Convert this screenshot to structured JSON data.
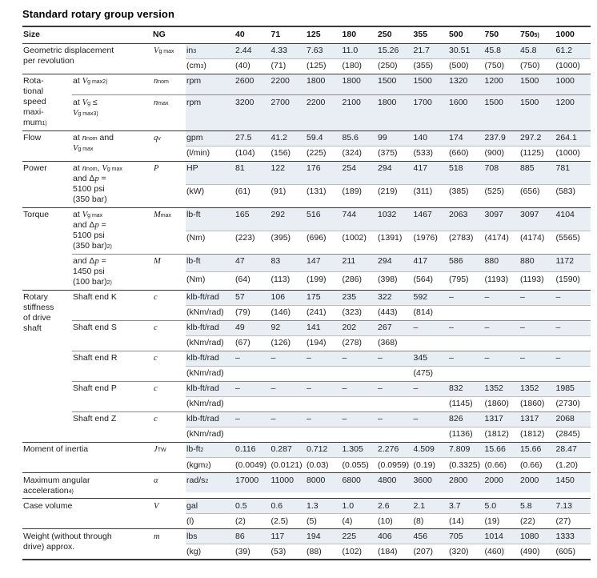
{
  "title": "Standard rotary group version",
  "colors": {
    "shade": "#e8eef3",
    "heavy_line": "#3a3a3a",
    "mid_line": "#8a8a8a",
    "light_line": "#bdbdbd"
  },
  "table": {
    "size_header": "Size",
    "ng_header": "NG",
    "sizes": [
      "40",
      "71",
      "125",
      "180",
      "250",
      "355",
      "500",
      "750",
      "750^{5)}",
      "1000"
    ],
    "sections": [
      {
        "label": "Geometric displacement\nper revolution",
        "span2": true,
        "rows": [
          {
            "symbol": "~V~_{g max}",
            "lines": [
              {
                "unit": "in^{3}",
                "shaded": true,
                "values": [
                  "2.44",
                  "4.33",
                  "7.63",
                  "11.0",
                  "15.26",
                  "21.7",
                  "30.51",
                  "45.8",
                  "45.8",
                  "61.2"
                ]
              },
              {
                "unit": "(cm^{3})",
                "shaded": false,
                "values": [
                  "(40)",
                  "(71)",
                  "(125)",
                  "(180)",
                  "(250)",
                  "(355)",
                  "(500)",
                  "(750)",
                  "(750)",
                  "(1000)"
                ]
              }
            ]
          }
        ]
      },
      {
        "label": "Rota-\ntional\nspeed\nmaxi-\nmum^{1)}",
        "span2": false,
        "rows": [
          {
            "sublabel": "at ~V~_{g max}^{2)}",
            "symbol": "~n~_{nom}",
            "lines": [
              {
                "unit": "rpm",
                "shaded": true,
                "values": [
                  "2600",
                  "2200",
                  "1800",
                  "1800",
                  "1500",
                  "1500",
                  "1320",
                  "1200",
                  "1500",
                  "1000"
                ]
              }
            ]
          },
          {
            "sublabel": "at ~V~_{g} ≤\n~V~_{g max}^{3)}",
            "symbol": "~n~_{max}",
            "lines": [
              {
                "unit": "rpm",
                "shaded": true,
                "values": [
                  "3200",
                  "2700",
                  "2200",
                  "2100",
                  "1800",
                  "1700",
                  "1600",
                  "1500",
                  "1500",
                  "1200"
                ]
              }
            ]
          }
        ]
      },
      {
        "label": "Flow",
        "span2": false,
        "rows": [
          {
            "sublabel": "at ~n~_{nom} and\n~V~_{g max}",
            "symbol": "~q~_{v}",
            "lines": [
              {
                "unit": "gpm",
                "shaded": true,
                "values": [
                  "27.5",
                  "41.2",
                  "59.4",
                  "85.6",
                  "99",
                  "140",
                  "174",
                  "237.9",
                  "297.2",
                  "264.1"
                ]
              },
              {
                "unit": "(l/min)",
                "shaded": false,
                "values": [
                  "(104)",
                  "(156)",
                  "(225)",
                  "(324)",
                  "(375)",
                  "(533)",
                  "(660)",
                  "(900)",
                  "(1125)",
                  "(1000)"
                ]
              }
            ]
          }
        ]
      },
      {
        "label": "Power",
        "span2": false,
        "rows": [
          {
            "sublabel": "at ~n~_{nom}, ~V~_{g max}\nand Δ~p~ =\n5100 psi\n(350 bar)",
            "symbol": "~P~",
            "lines": [
              {
                "unit": "HP",
                "shaded": true,
                "values": [
                  "81",
                  "122",
                  "176",
                  "254",
                  "294",
                  "417",
                  "518",
                  "708",
                  "885",
                  "781"
                ]
              },
              {
                "unit": "(kW)",
                "shaded": false,
                "values": [
                  "(61)",
                  "(91)",
                  "(131)",
                  "(189)",
                  "(219)",
                  "(311)",
                  "(385)",
                  "(525)",
                  "(656)",
                  "(583)"
                ]
              }
            ]
          }
        ]
      },
      {
        "label": "Torque",
        "span2": false,
        "rows": [
          {
            "sublabel": "at ~V~_{g max}\nand Δ~p~ =\n5100 psi\n(350 bar)^{2)}",
            "symbol": "~M~_{max}",
            "lines": [
              {
                "unit": "lb-ft",
                "shaded": true,
                "values": [
                  "165",
                  "292",
                  "516",
                  "744",
                  "1032",
                  "1467",
                  "2063",
                  "3097",
                  "3097",
                  "4104"
                ]
              },
              {
                "unit": "(Nm)",
                "shaded": false,
                "values": [
                  "(223)",
                  "(395)",
                  "(696)",
                  "(1002)",
                  "(1391)",
                  "(1976)",
                  "(2783)",
                  "(4174)",
                  "(4174)",
                  "(5565)"
                ]
              }
            ]
          },
          {
            "sublabel": "and Δ~p~ =\n1450 psi\n(100 bar)^{2)}",
            "symbol": "~M~",
            "lines": [
              {
                "unit": "lb-ft",
                "shaded": true,
                "values": [
                  "47",
                  "83",
                  "147",
                  "211",
                  "294",
                  "417",
                  "586",
                  "880",
                  "880",
                  "1172"
                ]
              },
              {
                "unit": "(Nm)",
                "shaded": false,
                "values": [
                  "(64)",
                  "(113)",
                  "(199)",
                  "(286)",
                  "(398)",
                  "(564)",
                  "(795)",
                  "(1193)",
                  "(1193)",
                  "(1590)"
                ]
              }
            ]
          }
        ]
      },
      {
        "label": "Rotary\nstiffness\nof drive\nshaft",
        "span2": false,
        "rows": [
          {
            "sublabel": "Shaft end K",
            "symbol": "~c~",
            "lines": [
              {
                "unit": "klb-ft/rad",
                "shaded": true,
                "values": [
                  "57",
                  "106",
                  "175",
                  "235",
                  "322",
                  "592",
                  "–",
                  "–",
                  "–",
                  "–"
                ]
              },
              {
                "unit": "(kNm/rad)",
                "shaded": false,
                "values": [
                  "(79)",
                  "(146)",
                  "(241)",
                  "(323)",
                  "(443)",
                  "(814)",
                  "",
                  "",
                  "",
                  ""
                ]
              }
            ]
          },
          {
            "sublabel": "Shaft end S",
            "symbol": "~c~",
            "lines": [
              {
                "unit": "klb-ft/rad",
                "shaded": true,
                "values": [
                  "49",
                  "92",
                  "141",
                  "202",
                  "267",
                  "–",
                  "–",
                  "–",
                  "–",
                  "–"
                ]
              },
              {
                "unit": "(kNm/rad)",
                "shaded": false,
                "values": [
                  "(67)",
                  "(126)",
                  "(194)",
                  "(278)",
                  "(368)",
                  "",
                  "",
                  "",
                  "",
                  ""
                ]
              }
            ]
          },
          {
            "sublabel": "Shaft end R",
            "symbol": "~c~",
            "lines": [
              {
                "unit": "klb-ft/rad",
                "shaded": true,
                "values": [
                  "–",
                  "–",
                  "–",
                  "–",
                  "–",
                  "345",
                  "–",
                  "–",
                  "–",
                  "–"
                ]
              },
              {
                "unit": "(kNm/rad)",
                "shaded": false,
                "values": [
                  "",
                  "",
                  "",
                  "",
                  "",
                  "(475)",
                  "",
                  "",
                  "",
                  ""
                ]
              }
            ]
          },
          {
            "sublabel": "Shaft end P",
            "symbol": "~c~",
            "lines": [
              {
                "unit": "klb-ft/rad",
                "shaded": true,
                "values": [
                  "–",
                  "–",
                  "–",
                  "–",
                  "–",
                  "–",
                  "832",
                  "1352",
                  "1352",
                  "1985"
                ]
              },
              {
                "unit": "(kNm/rad)",
                "shaded": false,
                "values": [
                  "",
                  "",
                  "",
                  "",
                  "",
                  "",
                  "(1145)",
                  "(1860)",
                  "(1860)",
                  "(2730)"
                ]
              }
            ]
          },
          {
            "sublabel": "Shaft end Z",
            "symbol": "~c~",
            "lines": [
              {
                "unit": "klb-ft/rad",
                "shaded": true,
                "values": [
                  "–",
                  "–",
                  "–",
                  "–",
                  "–",
                  "–",
                  "826",
                  "1317",
                  "1317",
                  "2068"
                ]
              },
              {
                "unit": "(kNm/rad)",
                "shaded": false,
                "values": [
                  "",
                  "",
                  "",
                  "",
                  "",
                  "",
                  "(1136)",
                  "(1812)",
                  "(1812)",
                  "(2845)"
                ]
              }
            ]
          }
        ]
      },
      {
        "label": "Moment of inertia",
        "span2": true,
        "rows": [
          {
            "symbol": "~J~_{TW}",
            "lines": [
              {
                "unit": "lb-ft^{2}",
                "shaded": true,
                "values": [
                  "0.116",
                  "0.287",
                  "0.712",
                  "1.305",
                  "2.276",
                  "4.509",
                  "7.809",
                  "15.66",
                  "15.66",
                  "28.47"
                ]
              },
              {
                "unit": "(kgm^{2})",
                "shaded": false,
                "values": [
                  "(0.0049)",
                  "(0.0121)",
                  "(0.03)",
                  "(0.055)",
                  "(0.0959)",
                  "(0.19)",
                  "(0.3325)",
                  "(0.66)",
                  "(0.66)",
                  "(1.20)"
                ]
              }
            ]
          }
        ]
      },
      {
        "label": "Maximum angular\nacceleration^{4)}",
        "span2": true,
        "rows": [
          {
            "symbol": "~α~",
            "lines": [
              {
                "unit": "rad/s^{2}",
                "shaded": true,
                "values": [
                  "17000",
                  "11000",
                  "8000",
                  "6800",
                  "4800",
                  "3600",
                  "2800",
                  "2000",
                  "2000",
                  "1450"
                ]
              },
              {
                "unit": "",
                "shaded": false,
                "blank": true,
                "values": [
                  "",
                  "",
                  "",
                  "",
                  "",
                  "",
                  "",
                  "",
                  "",
                  ""
                ]
              }
            ]
          }
        ]
      },
      {
        "label": "Case volume",
        "span2": true,
        "rows": [
          {
            "symbol": "~V~",
            "lines": [
              {
                "unit": "gal",
                "shaded": true,
                "values": [
                  "0.5",
                  "0.6",
                  "1.3",
                  "1.0",
                  "2.6",
                  "2.1",
                  "3.7",
                  "5.0",
                  "5.8",
                  "7.13"
                ]
              },
              {
                "unit": "(l)",
                "shaded": false,
                "values": [
                  "(2)",
                  "(2.5)",
                  "(5)",
                  "(4)",
                  "(10)",
                  "(8)",
                  "(14)",
                  "(19)",
                  "(22)",
                  "(27)"
                ]
              }
            ]
          }
        ]
      },
      {
        "label": "Weight (without through\ndrive) approx.",
        "span2": true,
        "rows": [
          {
            "symbol": "~m~",
            "lines": [
              {
                "unit": "lbs",
                "shaded": true,
                "values": [
                  "86",
                  "117",
                  "194",
                  "225",
                  "406",
                  "456",
                  "705",
                  "1014",
                  "1080",
                  "1333"
                ]
              },
              {
                "unit": "(kg)",
                "shaded": false,
                "values": [
                  "(39)",
                  "(53)",
                  "(88)",
                  "(102)",
                  "(184)",
                  "(207)",
                  "(320)",
                  "(460)",
                  "(490)",
                  "(605)"
                ]
              }
            ]
          }
        ]
      }
    ]
  }
}
